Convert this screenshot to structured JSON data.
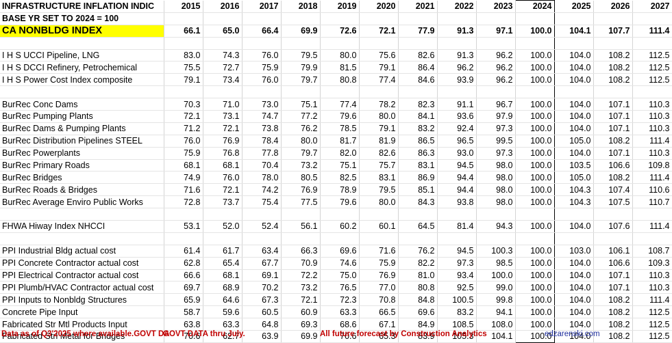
{
  "title": "INFRASTRUCTURE INFLATION INDIC",
  "years": [
    "2015",
    "2016",
    "2017",
    "2018",
    "2019",
    "2020",
    "2021",
    "2022",
    "2023",
    "2024",
    "2025",
    "2026",
    "2027"
  ],
  "base_note": "BASE YR SET TO 2024 = 100",
  "highlight_label": "CA NONBLDG INDEX",
  "highlight_values": [
    "66.1",
    "65.0",
    "66.4",
    "69.9",
    "72.6",
    "72.1",
    "77.9",
    "91.3",
    "97.1",
    "100.0",
    "104.1",
    "107.7",
    "111.4"
  ],
  "groups": [
    [
      {
        "label": "I H S UCCI Pipeline, LNG",
        "values": [
          "83.0",
          "74.3",
          "76.0",
          "79.5",
          "80.0",
          "75.6",
          "82.6",
          "91.3",
          "96.2",
          "100.0",
          "104.0",
          "108.2",
          "112.5"
        ]
      },
      {
        "label": "I H S DCCI Refinery, Petrochemical",
        "values": [
          "75.5",
          "72.7",
          "75.9",
          "79.9",
          "81.5",
          "79.1",
          "86.4",
          "96.2",
          "96.2",
          "100.0",
          "104.0",
          "108.2",
          "112.5"
        ]
      },
      {
        "label": "I H S Power Cost Index composite",
        "values": [
          "79.1",
          "73.4",
          "76.0",
          "79.7",
          "80.8",
          "77.4",
          "84.6",
          "93.9",
          "96.2",
          "100.0",
          "104.0",
          "108.2",
          "112.5"
        ]
      }
    ],
    [
      {
        "label": "BurRec Conc Dams",
        "values": [
          "70.3",
          "71.0",
          "73.0",
          "75.1",
          "77.4",
          "78.2",
          "82.3",
          "91.1",
          "96.7",
          "100.0",
          "104.0",
          "107.1",
          "110.3"
        ]
      },
      {
        "label": "BurRec Pumping Plants",
        "values": [
          "72.1",
          "73.1",
          "74.7",
          "77.2",
          "79.6",
          "80.0",
          "84.1",
          "93.6",
          "97.9",
          "100.0",
          "104.0",
          "107.1",
          "110.3"
        ]
      },
      {
        "label": "BurRec Dams & Pumping Plants",
        "values": [
          "71.2",
          "72.1",
          "73.8",
          "76.2",
          "78.5",
          "79.1",
          "83.2",
          "92.4",
          "97.3",
          "100.0",
          "104.0",
          "107.1",
          "110.3"
        ]
      },
      {
        "label": "BurRec Distribution Pipelines STEEL",
        "values": [
          "76.0",
          "76.9",
          "78.4",
          "80.0",
          "81.7",
          "81.9",
          "86.5",
          "96.5",
          "99.5",
          "100.0",
          "105.0",
          "108.2",
          "111.4"
        ]
      },
      {
        "label": "BurRec Powerplants",
        "values": [
          "75.9",
          "76.8",
          "77.8",
          "79.7",
          "82.0",
          "82.6",
          "86.3",
          "93.0",
          "97.3",
          "100.0",
          "104.0",
          "107.1",
          "110.3"
        ]
      },
      {
        "label": "BurRec Primary Roads",
        "values": [
          "68.1",
          "68.1",
          "70.4",
          "73.2",
          "75.1",
          "75.7",
          "83.1",
          "94.5",
          "98.0",
          "100.0",
          "103.5",
          "106.6",
          "109.8"
        ]
      },
      {
        "label": "BurRec Bridges",
        "values": [
          "74.9",
          "76.0",
          "78.0",
          "80.5",
          "82.5",
          "83.1",
          "86.9",
          "94.4",
          "98.0",
          "100.0",
          "105.0",
          "108.2",
          "111.4"
        ]
      },
      {
        "label": "BurRec Roads & Bridges",
        "values": [
          "71.6",
          "72.1",
          "74.2",
          "76.9",
          "78.9",
          "79.5",
          "85.1",
          "94.4",
          "98.0",
          "100.0",
          "104.3",
          "107.4",
          "110.6"
        ]
      },
      {
        "label": "BurRec Average Enviro Public Works",
        "values": [
          "72.8",
          "73.7",
          "75.4",
          "77.5",
          "79.6",
          "80.0",
          "84.3",
          "93.8",
          "98.0",
          "100.0",
          "104.3",
          "107.5",
          "110.7"
        ]
      }
    ],
    [
      {
        "label": "FHWA Hiway Index NHCCI",
        "values": [
          "53.1",
          "52.0",
          "52.4",
          "56.1",
          "60.2",
          "60.1",
          "64.5",
          "81.4",
          "94.3",
          "100.0",
          "104.0",
          "107.6",
          "111.4"
        ]
      }
    ],
    [
      {
        "label": "PPI Industrial Bldg actual cost",
        "values": [
          "61.4",
          "61.7",
          "63.4",
          "66.3",
          "69.6",
          "71.6",
          "76.2",
          "94.5",
          "100.3",
          "100.0",
          "103.0",
          "106.1",
          "108.7"
        ]
      },
      {
        "label": "PPI Concrete Contractor actual cost",
        "values": [
          "62.8",
          "65.4",
          "67.7",
          "70.9",
          "74.6",
          "75.9",
          "82.2",
          "97.3",
          "98.5",
          "100.0",
          "104.0",
          "106.6",
          "109.3"
        ]
      },
      {
        "label": "PPI Electrical Contractor actual cost",
        "values": [
          "66.6",
          "68.1",
          "69.1",
          "72.2",
          "75.0",
          "76.9",
          "81.0",
          "93.4",
          "100.0",
          "100.0",
          "104.0",
          "107.1",
          "110.3"
        ]
      },
      {
        "label": "PPI Plumb/HVAC Contractor actual cost",
        "values": [
          "69.7",
          "68.9",
          "70.2",
          "73.2",
          "76.5",
          "77.0",
          "80.8",
          "92.5",
          "99.0",
          "100.0",
          "104.0",
          "107.1",
          "110.3"
        ]
      },
      {
        "label": "PPI Inputs to Nonbldg Structures",
        "values": [
          "65.9",
          "64.6",
          "67.3",
          "72.1",
          "72.3",
          "70.8",
          "84.8",
          "100.5",
          "99.8",
          "100.0",
          "104.0",
          "108.2",
          "111.4"
        ]
      },
      {
        "label": "Concrete Pipe Input",
        "values": [
          "58.7",
          "59.6",
          "60.5",
          "60.9",
          "63.3",
          "66.5",
          "69.6",
          "83.2",
          "94.1",
          "100.0",
          "104.0",
          "108.2",
          "112.5"
        ]
      },
      {
        "label": "Fabricated Str Mtl Products Input",
        "values": [
          "63.8",
          "63.3",
          "64.8",
          "69.3",
          "68.6",
          "67.1",
          "84.9",
          "108.5",
          "108.0",
          "100.0",
          "104.0",
          "108.2",
          "112.5"
        ]
      },
      {
        "label": "Fabricated Strl Metal for Bridges",
        "values": [
          "70.6",
          "62.7",
          "63.9",
          "69.9",
          "70.6",
          "65.3",
          "83.9",
          "105.3",
          "104.1",
          "100.0",
          "104.0",
          "108.2",
          "112.5"
        ]
      }
    ]
  ],
  "footer": {
    "left": "Data as of Q3'2025 where available.GOVT DA",
    "left2": "GOVT DATA thru July.",
    "middle": "All future forecast by Construction Analytics",
    "right": "edzarenski.com"
  }
}
